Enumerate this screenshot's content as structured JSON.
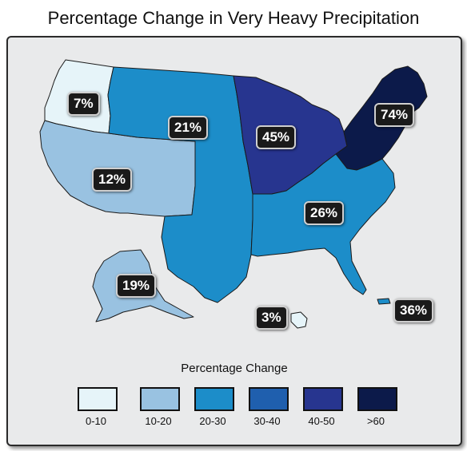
{
  "title": "Percentage Change in Very Heavy Precipitation",
  "colors": {
    "c0_10": "#e6f4f9",
    "c10_20": "#99c2e1",
    "c20_30": "#1c8dc9",
    "c30_40": "#1f5fae",
    "c40_50": "#27358f",
    "c60": "#0c1a4a"
  },
  "regions": [
    {
      "name": "Northwest",
      "value": "7%"
    },
    {
      "name": "Southwest",
      "value": "12%"
    },
    {
      "name": "Great Plains",
      "value": "21%"
    },
    {
      "name": "Midwest",
      "value": "45%"
    },
    {
      "name": "Northeast",
      "value": "74%"
    },
    {
      "name": "Southeast",
      "value": "26%"
    },
    {
      "name": "Alaska",
      "value": "19%"
    },
    {
      "name": "Hawaii",
      "value": "3%"
    },
    {
      "name": "Puerto Rico",
      "value": "36%"
    }
  ],
  "legend": {
    "title": "Percentage Change",
    "items": [
      {
        "label": "0-10"
      },
      {
        "label": "10-20"
      },
      {
        "label": "20-30"
      },
      {
        "label": "30-40"
      },
      {
        "label": "40-50"
      },
      {
        "label": ">60"
      }
    ]
  }
}
